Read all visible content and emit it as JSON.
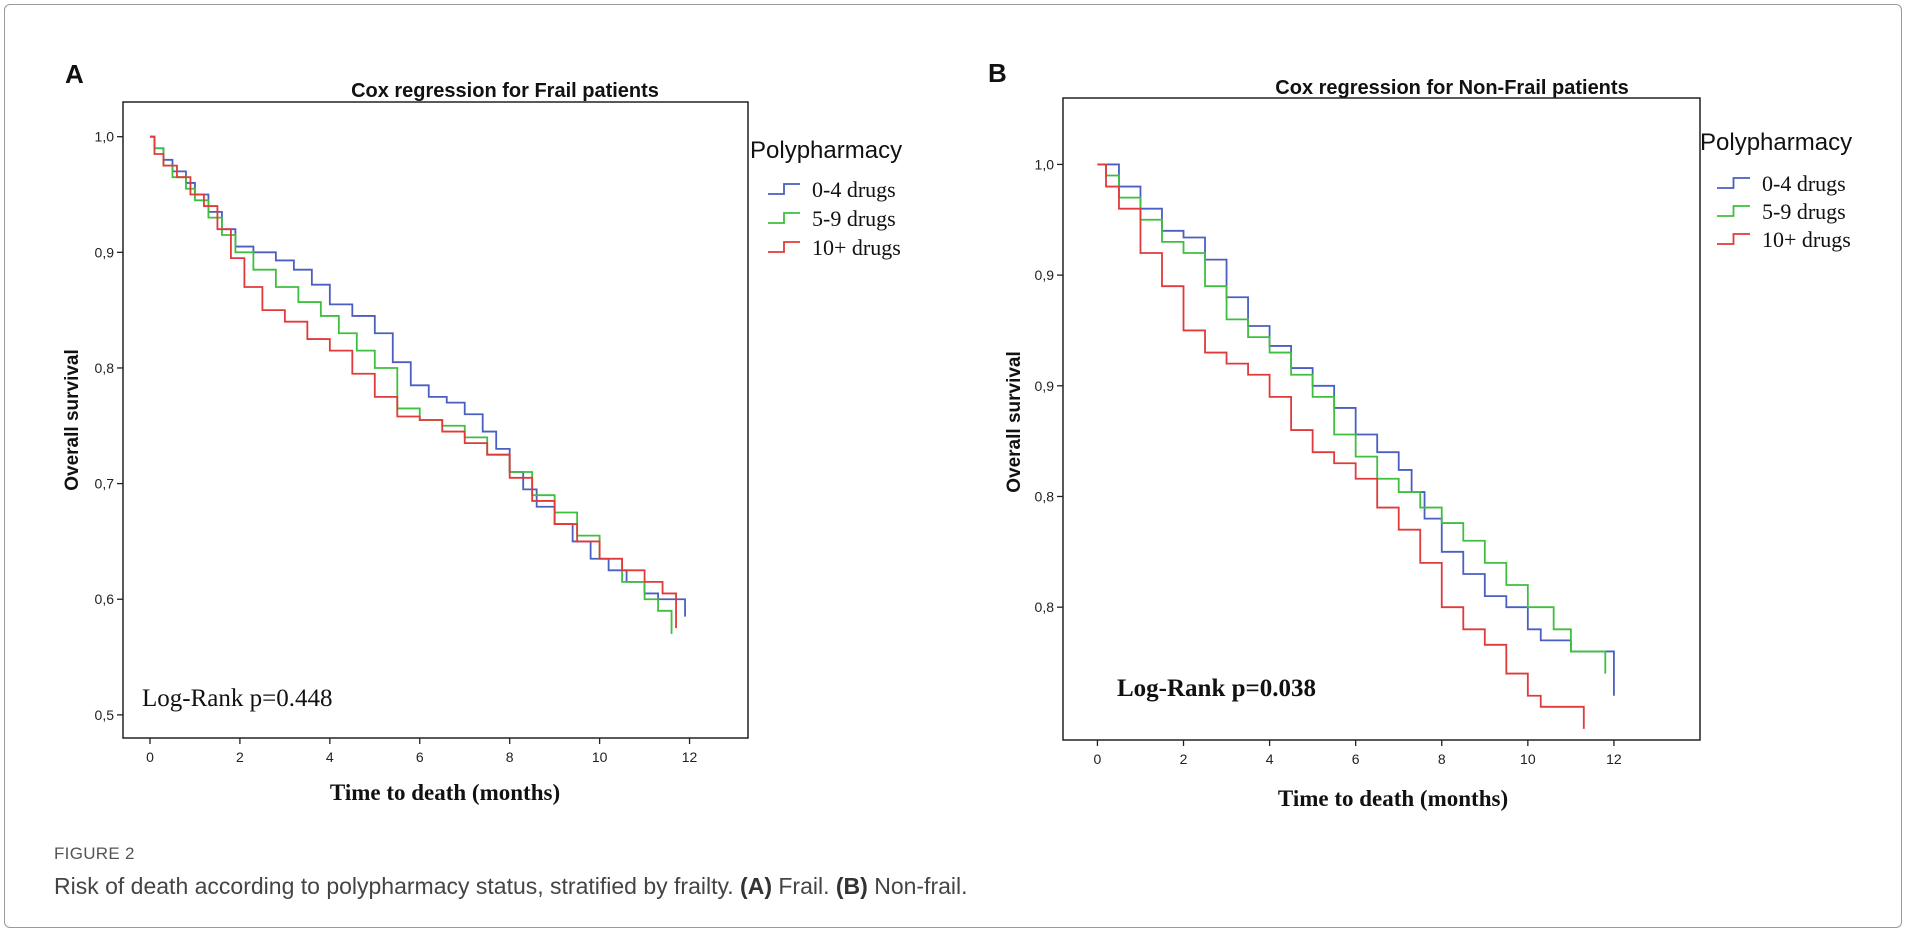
{
  "caption": {
    "label": "FIGURE 2",
    "text_before": "Risk of death according to polypharmacy status, stratified by frailty. ",
    "panel_a_marker": "(A)",
    "panel_a_text": " Frail. ",
    "panel_b_marker": "(B)",
    "panel_b_text": " Non-frail."
  },
  "colors": {
    "0-4 drugs": "#4a5fc1",
    "5-9 drugs": "#3fbf3f",
    "10+ drugs": "#e03a3a"
  },
  "chart_data": [
    {
      "type": "line",
      "panel": "A",
      "title": "Cox regression for Frail patients",
      "xlabel": "Time to death (months)",
      "ylabel": "Overall survival",
      "xlim": [
        -0.6,
        13.3
      ],
      "ylim": [
        0.48,
        1.03
      ],
      "xticks": [
        0,
        2,
        4,
        6,
        8,
        10,
        12
      ],
      "yticks": [
        {
          "value": 0.5,
          "label": "0,5"
        },
        {
          "value": 0.6,
          "label": "0,6"
        },
        {
          "value": 0.7,
          "label": "0,7"
        },
        {
          "value": 0.8,
          "label": "0,8"
        },
        {
          "value": 0.9,
          "label": "0,9"
        },
        {
          "value": 1.0,
          "label": "1,0"
        }
      ],
      "legend_title": "Polypharmacy",
      "legend_position": "outside-right",
      "annotation": "Log-Rank p=0.448",
      "annotation_bold": false,
      "series": [
        {
          "name": "0-4 drugs",
          "x": [
            0,
            0.1,
            0.3,
            0.5,
            0.8,
            1.0,
            1.3,
            1.6,
            1.9,
            2.3,
            2.8,
            3.2,
            3.6,
            4.0,
            4.5,
            5.0,
            5.4,
            5.8,
            6.2,
            6.6,
            7.0,
            7.4,
            7.7,
            8.0,
            8.3,
            8.6,
            9.0,
            9.4,
            9.8,
            10.2,
            10.6,
            11.0,
            11.3,
            11.6,
            11.9
          ],
          "y": [
            1.0,
            0.99,
            0.98,
            0.97,
            0.96,
            0.95,
            0.935,
            0.92,
            0.905,
            0.9,
            0.893,
            0.885,
            0.872,
            0.855,
            0.845,
            0.83,
            0.805,
            0.785,
            0.775,
            0.77,
            0.76,
            0.745,
            0.73,
            0.71,
            0.695,
            0.68,
            0.665,
            0.65,
            0.635,
            0.625,
            0.615,
            0.605,
            0.6,
            0.6,
            0.585
          ]
        },
        {
          "name": "5-9 drugs",
          "x": [
            0,
            0.1,
            0.3,
            0.5,
            0.8,
            1.0,
            1.3,
            1.6,
            1.9,
            2.3,
            2.8,
            3.3,
            3.8,
            4.2,
            4.6,
            5.0,
            5.5,
            6.0,
            6.5,
            7.0,
            7.5,
            8.0,
            8.5,
            9.0,
            9.5,
            10.0,
            10.5,
            11.0,
            11.3,
            11.6
          ],
          "y": [
            1.0,
            0.99,
            0.975,
            0.965,
            0.955,
            0.945,
            0.93,
            0.915,
            0.9,
            0.885,
            0.87,
            0.857,
            0.845,
            0.83,
            0.815,
            0.8,
            0.765,
            0.755,
            0.75,
            0.74,
            0.725,
            0.71,
            0.69,
            0.675,
            0.655,
            0.635,
            0.615,
            0.6,
            0.59,
            0.57
          ]
        },
        {
          "name": "10+ drugs",
          "x": [
            0,
            0.1,
            0.3,
            0.6,
            0.9,
            1.2,
            1.5,
            1.8,
            2.1,
            2.5,
            3.0,
            3.5,
            4.0,
            4.5,
            5.0,
            5.5,
            6.0,
            6.5,
            7.0,
            7.5,
            8.0,
            8.5,
            9.0,
            9.5,
            10.0,
            10.5,
            11.0,
            11.4,
            11.7
          ],
          "y": [
            1.0,
            0.985,
            0.975,
            0.965,
            0.95,
            0.94,
            0.92,
            0.895,
            0.87,
            0.85,
            0.84,
            0.825,
            0.815,
            0.795,
            0.775,
            0.758,
            0.755,
            0.745,
            0.735,
            0.725,
            0.705,
            0.685,
            0.665,
            0.65,
            0.635,
            0.625,
            0.615,
            0.605,
            0.575
          ]
        }
      ]
    },
    {
      "type": "line",
      "panel": "B",
      "title": "Cox regression for Non-Frail patients",
      "xlabel": "Time to death (months)",
      "ylabel": "Overall survival",
      "xlim": [
        -0.8,
        14.0
      ],
      "ylim": [
        0.74,
        1.03
      ],
      "xticks": [
        0,
        2,
        4,
        6,
        8,
        10,
        12
      ],
      "yticks": [
        {
          "value": 0.8,
          "label": "0,8"
        },
        {
          "value": 0.85,
          "label": "0,8"
        },
        {
          "value": 0.9,
          "label": "0,9"
        },
        {
          "value": 0.95,
          "label": "0,9"
        },
        {
          "value": 1.0,
          "label": "1,0"
        }
      ],
      "legend_title": "Polypharmacy",
      "legend_position": "outside-right",
      "annotation": "Log-Rank p=0.038",
      "annotation_bold": true,
      "series": [
        {
          "name": "0-4 drugs",
          "x": [
            0,
            0.2,
            0.5,
            1.0,
            1.5,
            2.0,
            2.5,
            3.0,
            3.5,
            4.0,
            4.5,
            5.0,
            5.5,
            6.0,
            6.5,
            7.0,
            7.3,
            7.6,
            8.0,
            8.5,
            9.0,
            9.5,
            10.0,
            10.3,
            10.6,
            11.0,
            11.5,
            12.0,
            12.0
          ],
          "y": [
            1.0,
            1.0,
            0.99,
            0.98,
            0.97,
            0.967,
            0.957,
            0.94,
            0.927,
            0.918,
            0.908,
            0.9,
            0.89,
            0.878,
            0.87,
            0.862,
            0.852,
            0.84,
            0.825,
            0.815,
            0.805,
            0.8,
            0.79,
            0.785,
            0.785,
            0.78,
            0.78,
            0.78,
            0.76
          ]
        },
        {
          "name": "5-9 drugs",
          "x": [
            0,
            0.2,
            0.5,
            1.0,
            1.5,
            2.0,
            2.5,
            3.0,
            3.5,
            4.0,
            4.5,
            5.0,
            5.5,
            6.0,
            6.5,
            7.0,
            7.5,
            8.0,
            8.5,
            9.0,
            9.5,
            10.0,
            10.6,
            11.0,
            11.5,
            11.8,
            11.8
          ],
          "y": [
            1.0,
            0.995,
            0.985,
            0.975,
            0.965,
            0.96,
            0.945,
            0.93,
            0.922,
            0.915,
            0.905,
            0.895,
            0.878,
            0.868,
            0.858,
            0.852,
            0.845,
            0.838,
            0.83,
            0.82,
            0.81,
            0.8,
            0.79,
            0.78,
            0.78,
            0.77,
            0.775
          ]
        },
        {
          "name": "10+ drugs",
          "x": [
            0,
            0.2,
            0.5,
            1.0,
            1.5,
            2.0,
            2.5,
            3.0,
            3.5,
            4.0,
            4.5,
            5.0,
            5.5,
            6.0,
            6.5,
            7.0,
            7.5,
            8.0,
            8.5,
            9.0,
            9.5,
            10.0,
            10.3,
            10.7,
            11.0,
            11.3,
            11.3
          ],
          "y": [
            1.0,
            0.99,
            0.98,
            0.96,
            0.945,
            0.925,
            0.915,
            0.91,
            0.905,
            0.895,
            0.88,
            0.87,
            0.865,
            0.858,
            0.845,
            0.835,
            0.82,
            0.8,
            0.79,
            0.783,
            0.77,
            0.76,
            0.755,
            0.755,
            0.755,
            0.755,
            0.745
          ]
        }
      ]
    }
  ]
}
